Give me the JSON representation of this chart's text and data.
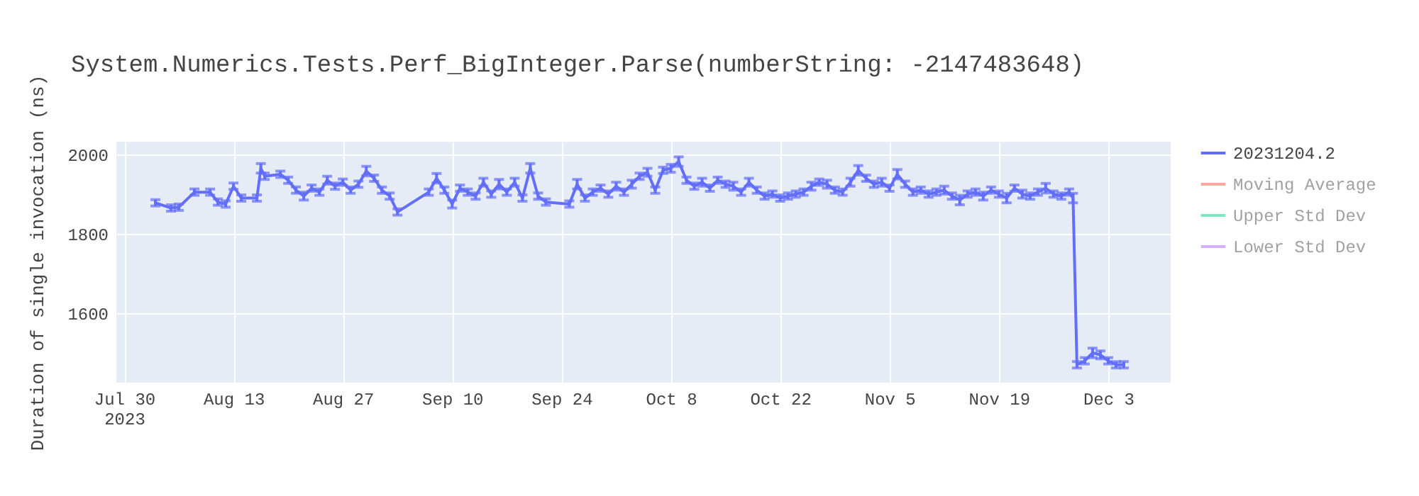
{
  "chart_data": {
    "type": "line",
    "title": "System.Numerics.Tests.Perf_BigInteger.Parse(numberString: -2147483648)",
    "ylabel": "Duration of single invocation (ns)",
    "x": [
      "2023-08-03",
      "2023-08-05",
      "2023-08-06",
      "2023-08-08",
      "2023-08-10",
      "2023-08-11",
      "2023-08-12",
      "2023-08-13",
      "2023-08-14",
      "2023-08-16",
      "2023-08-16T12:00",
      "2023-08-17",
      "2023-08-19",
      "2023-08-20",
      "2023-08-21",
      "2023-08-22",
      "2023-08-23",
      "2023-08-24",
      "2023-08-25",
      "2023-08-26",
      "2023-08-27",
      "2023-08-28",
      "2023-08-29",
      "2023-08-30",
      "2023-08-31",
      "2023-09-01",
      "2023-09-02",
      "2023-09-03",
      "2023-09-07",
      "2023-09-08",
      "2023-09-09",
      "2023-09-10",
      "2023-09-11",
      "2023-09-12",
      "2023-09-13",
      "2023-09-14",
      "2023-09-15",
      "2023-09-16",
      "2023-09-17",
      "2023-09-18",
      "2023-09-19",
      "2023-09-20",
      "2023-09-21",
      "2023-09-22",
      "2023-09-25",
      "2023-09-26",
      "2023-09-27",
      "2023-09-28",
      "2023-09-29",
      "2023-09-30",
      "2023-10-01",
      "2023-10-02",
      "2023-10-03",
      "2023-10-04",
      "2023-10-05",
      "2023-10-06",
      "2023-10-07",
      "2023-10-08",
      "2023-10-09",
      "2023-10-10",
      "2023-10-11",
      "2023-10-12",
      "2023-10-13",
      "2023-10-14",
      "2023-10-15",
      "2023-10-16",
      "2023-10-17",
      "2023-10-18",
      "2023-10-19",
      "2023-10-20",
      "2023-10-21",
      "2023-10-22",
      "2023-10-23",
      "2023-10-24",
      "2023-10-25",
      "2023-10-26",
      "2023-10-27",
      "2023-10-28",
      "2023-10-29",
      "2023-10-30",
      "2023-10-31",
      "2023-11-01",
      "2023-11-02",
      "2023-11-03",
      "2023-11-04",
      "2023-11-05",
      "2023-11-06",
      "2023-11-07",
      "2023-11-08",
      "2023-11-09",
      "2023-11-10",
      "2023-11-11",
      "2023-11-12",
      "2023-11-13",
      "2023-11-14",
      "2023-11-15",
      "2023-11-16",
      "2023-11-17",
      "2023-11-18",
      "2023-11-19",
      "2023-11-20",
      "2023-11-21",
      "2023-11-22",
      "2023-11-23",
      "2023-11-24",
      "2023-11-25",
      "2023-11-26",
      "2023-11-27",
      "2023-11-28",
      "2023-11-28T12:00",
      "2023-11-29",
      "2023-11-30",
      "2023-12-01",
      "2023-12-02",
      "2023-12-03",
      "2023-12-04",
      "2023-12-05"
    ],
    "series": [
      {
        "name": "20231204.2",
        "color": "#636efa",
        "values": [
          1878,
          1865,
          1867,
          1905,
          1905,
          1880,
          1875,
          1920,
          1890,
          1890,
          1965,
          1945,
          1950,
          1935,
          1910,
          1895,
          1915,
          1905,
          1935,
          1920,
          1930,
          1910,
          1925,
          1958,
          1940,
          1910,
          1895,
          1855,
          1905,
          1940,
          1910,
          1875,
          1915,
          1905,
          1895,
          1930,
          1900,
          1925,
          1905,
          1930,
          1890,
          1965,
          1895,
          1880,
          1875,
          1925,
          1890,
          1905,
          1915,
          1900,
          1920,
          1905,
          1925,
          1945,
          1955,
          1910,
          1960,
          1965,
          1982,
          1935,
          1920,
          1930,
          1915,
          1935,
          1925,
          1920,
          1905,
          1930,
          1910,
          1895,
          1900,
          1890,
          1895,
          1900,
          1905,
          1920,
          1930,
          1925,
          1910,
          1905,
          1930,
          1960,
          1940,
          1925,
          1930,
          1915,
          1950,
          1925,
          1905,
          1910,
          1900,
          1905,
          1910,
          1895,
          1885,
          1900,
          1905,
          1895,
          1910,
          1900,
          1890,
          1915,
          1900,
          1895,
          1905,
          1915,
          1900,
          1895,
          1905,
          1890,
          1470,
          1480,
          1500,
          1495,
          1480,
          1470,
          1470
        ],
        "errors": [
          8,
          8,
          8,
          8,
          8,
          8,
          8,
          8,
          8,
          8,
          12,
          8,
          8,
          8,
          8,
          10,
          8,
          8,
          10,
          8,
          8,
          8,
          8,
          12,
          8,
          8,
          8,
          8,
          8,
          12,
          8,
          10,
          8,
          8,
          8,
          10,
          8,
          12,
          8,
          10,
          8,
          12,
          8,
          8,
          8,
          12,
          8,
          8,
          8,
          8,
          10,
          8,
          10,
          8,
          10,
          8,
          8,
          10,
          12,
          8,
          8,
          10,
          8,
          8,
          8,
          10,
          8,
          10,
          8,
          8,
          8,
          8,
          8,
          8,
          8,
          10,
          8,
          10,
          8,
          8,
          10,
          12,
          8,
          8,
          10,
          8,
          12,
          8,
          8,
          8,
          8,
          8,
          10,
          8,
          12,
          8,
          8,
          10,
          8,
          8,
          12,
          8,
          10,
          8,
          8,
          12,
          8,
          8,
          8,
          12,
          8,
          8,
          12,
          10,
          8,
          8,
          8
        ]
      },
      {
        "name": "Moving Average",
        "color": "#ef553b",
        "values": [
          null,
          null,
          null,
          null,
          null,
          null,
          null,
          null,
          null,
          null,
          null,
          null,
          null,
          null,
          null,
          null,
          null,
          null,
          null,
          null,
          null,
          null,
          null,
          null,
          null,
          null,
          null,
          null,
          null,
          null,
          null,
          null,
          null,
          null,
          null,
          null,
          null,
          null,
          null,
          null,
          null,
          null,
          null,
          null,
          null,
          null,
          null,
          null,
          null,
          null,
          null,
          null,
          null,
          null,
          null,
          null,
          null,
          null,
          null,
          null,
          null,
          null,
          null,
          null,
          null,
          null,
          null,
          null,
          null,
          null,
          null,
          null,
          null,
          null,
          null,
          null,
          null,
          null,
          null,
          null,
          null,
          null,
          null,
          null,
          null,
          null,
          null,
          null,
          null,
          null,
          null,
          null,
          null,
          null,
          null,
          null,
          null,
          null,
          null,
          null,
          null,
          null,
          null,
          null,
          null,
          null,
          null,
          null,
          null,
          null,
          null,
          null,
          null,
          null,
          null,
          null,
          null
        ]
      },
      {
        "name": "Upper Std Dev",
        "color": "#00cc96",
        "values": [
          null,
          null,
          null,
          null,
          null,
          null,
          null,
          null,
          null,
          null,
          null,
          null,
          null,
          null,
          null,
          null,
          null,
          null,
          null,
          null,
          null,
          null,
          null,
          null,
          null,
          null,
          null,
          null,
          null,
          null,
          null,
          null,
          null,
          null,
          null,
          null,
          null,
          null,
          null,
          null,
          null,
          null,
          null,
          null,
          null,
          null,
          null,
          null,
          null,
          null,
          null,
          null,
          null,
          null,
          null,
          null,
          null,
          null,
          null,
          null,
          null,
          null,
          null,
          null,
          null,
          null,
          null,
          null,
          null,
          null,
          null,
          null,
          null,
          null,
          null,
          null,
          null,
          null,
          null,
          null,
          null,
          null,
          null,
          null,
          null,
          null,
          null,
          null,
          null,
          null,
          null,
          null,
          null,
          null,
          null,
          null,
          null,
          null,
          null,
          null,
          null,
          null,
          null,
          null,
          null,
          null,
          null,
          null,
          null,
          null,
          null,
          null,
          null,
          null,
          null,
          null,
          null
        ]
      },
      {
        "name": "Lower Std Dev",
        "color": "#ab63fa",
        "values": [
          null,
          null,
          null,
          null,
          null,
          null,
          null,
          null,
          null,
          null,
          null,
          null,
          null,
          null,
          null,
          null,
          null,
          null,
          null,
          null,
          null,
          null,
          null,
          null,
          null,
          null,
          null,
          null,
          null,
          null,
          null,
          null,
          null,
          null,
          null,
          null,
          null,
          null,
          null,
          null,
          null,
          null,
          null,
          null,
          null,
          null,
          null,
          null,
          null,
          null,
          null,
          null,
          null,
          null,
          null,
          null,
          null,
          null,
          null,
          null,
          null,
          null,
          null,
          null,
          null,
          null,
          null,
          null,
          null,
          null,
          null,
          null,
          null,
          null,
          null,
          null,
          null,
          null,
          null,
          null,
          null,
          null,
          null,
          null,
          null,
          null,
          null,
          null,
          null,
          null,
          null,
          null,
          null,
          null,
          null,
          null,
          null,
          null,
          null,
          null,
          null,
          null,
          null,
          null,
          null,
          null,
          null,
          null,
          null,
          null,
          null,
          null,
          null,
          null,
          null,
          null,
          null
        ]
      }
    ],
    "xlim": [
      "2023-07-29",
      "2023-12-11"
    ],
    "xticks": [
      {
        "value": "2023-07-30",
        "label": "Jul 30\n2023"
      },
      {
        "value": "2023-08-13",
        "label": "Aug 13"
      },
      {
        "value": "2023-08-27",
        "label": "Aug 27"
      },
      {
        "value": "2023-09-10",
        "label": "Sep 10"
      },
      {
        "value": "2023-09-24",
        "label": "Sep 24"
      },
      {
        "value": "2023-10-08",
        "label": "Oct 8"
      },
      {
        "value": "2023-10-22",
        "label": "Oct 22"
      },
      {
        "value": "2023-11-05",
        "label": "Nov 5"
      },
      {
        "value": "2023-11-19",
        "label": "Nov 19"
      },
      {
        "value": "2023-12-03",
        "label": "Dec 3"
      }
    ],
    "ylim": [
      1425,
      2032
    ],
    "yticks": [
      1600,
      1800,
      2000
    ],
    "grid": true,
    "legend": "top right",
    "marker": "none",
    "line_style": "solid"
  }
}
